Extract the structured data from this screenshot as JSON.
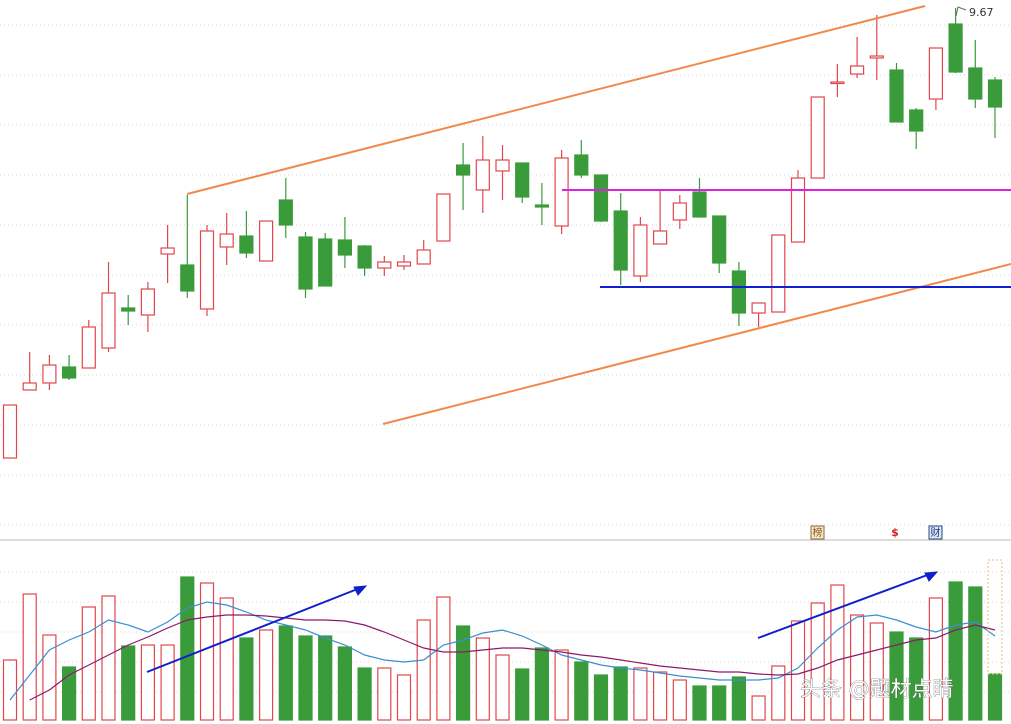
{
  "chart_data": {
    "type": "candlestick",
    "open": [
      5.17,
      5.85,
      5.92,
      6.08,
      6.07,
      6.27,
      6.67,
      6.6,
      7.21,
      7.1,
      6.66,
      7.28,
      7.39,
      7.14,
      7.75,
      7.38,
      7.36,
      7.35,
      7.29,
      7.07,
      7.09,
      7.11,
      7.34,
      8.1,
      7.85,
      8.04,
      8.12,
      7.7,
      7.49,
      8.2,
      8.0,
      7.64,
      6.99,
      7.31,
      7.55,
      7.83,
      7.59,
      7.04,
      6.62,
      6.63,
      7.33,
      7.97,
      8.92,
      9.01,
      9.17,
      9.05,
      8.65,
      8.76,
      9.51,
      9.07,
      8.95
    ],
    "high": [
      5.7,
      6.23,
      6.2,
      6.2,
      6.55,
      7.13,
      6.8,
      6.93,
      7.5,
      7.8,
      7.5,
      7.62,
      7.64,
      7.54,
      7.97,
      7.43,
      7.42,
      7.58,
      7.3,
      7.19,
      7.2,
      7.35,
      7.81,
      8.32,
      8.39,
      8.3,
      8.12,
      7.92,
      8.25,
      8.35,
      8.0,
      7.82,
      7.58,
      7.85,
      7.8,
      7.97,
      7.59,
      7.13,
      6.72,
      7.4,
      8.05,
      8.78,
      9.11,
      9.38,
      9.6,
      9.12,
      8.67,
      9.27,
      9.67,
      9.35,
      8.98
    ],
    "low": [
      5.17,
      5.85,
      5.85,
      5.95,
      6.07,
      6.23,
      6.5,
      6.43,
      6.92,
      6.77,
      6.59,
      7.1,
      7.17,
      7.14,
      7.37,
      6.77,
      6.89,
      7.07,
      6.99,
      6.99,
      7.05,
      7.11,
      7.34,
      7.65,
      7.62,
      7.75,
      7.72,
      7.5,
      7.41,
      7.97,
      7.53,
      6.9,
      6.93,
      7.31,
      7.46,
      7.58,
      7.02,
      6.49,
      6.48,
      6.63,
      7.33,
      7.97,
      8.78,
      8.97,
      8.95,
      8.53,
      8.26,
      8.65,
      9.02,
      8.67,
      8.37
    ],
    "close": [
      5.7,
      5.92,
      6.1,
      5.97,
      6.48,
      6.82,
      6.64,
      6.86,
      7.27,
      6.84,
      7.44,
      7.41,
      7.22,
      7.54,
      7.5,
      6.86,
      6.89,
      7.2,
      7.07,
      7.13,
      7.13,
      7.25,
      7.81,
      8.0,
      8.15,
      8.15,
      7.78,
      7.68,
      8.17,
      8.0,
      7.54,
      7.05,
      7.5,
      7.44,
      7.72,
      7.58,
      7.12,
      6.62,
      6.72,
      7.4,
      7.97,
      8.78,
      8.93,
      9.09,
      9.19,
      8.53,
      8.44,
      9.27,
      9.03,
      8.76,
      8.68
    ],
    "ylim": [
      4.48,
      9.75
    ],
    "up_color": "#e0474c",
    "down_color": "#3a9b3a",
    "volume": {
      "values": [
        60,
        126,
        85,
        53,
        113,
        124,
        74,
        75,
        75,
        143,
        137,
        122,
        82,
        90,
        94,
        84,
        84,
        73,
        52,
        52,
        45,
        100,
        123,
        94,
        82,
        65,
        51,
        72,
        70,
        58,
        45,
        53,
        52,
        48,
        40,
        34,
        34,
        43,
        24,
        54,
        99,
        117,
        135,
        105,
        97,
        88,
        82,
        122,
        138,
        133,
        46
      ],
      "ylim": [
        0,
        180
      ],
      "series": [
        {
          "color": "#3a8fd0",
          "values": [
            20,
            45,
            70,
            80,
            88,
            100,
            95,
            88,
            98,
            112,
            118,
            115,
            108,
            100,
            95,
            90,
            82,
            75,
            65,
            60,
            58,
            60,
            75,
            80,
            87,
            90,
            84,
            75,
            65,
            60,
            55,
            52,
            50,
            47,
            44,
            42,
            40,
            40,
            40,
            42,
            52,
            72,
            90,
            103,
            105,
            100,
            93,
            88,
            95,
            98,
            84
          ]
        },
        {
          "color": "#8b1a6b",
          "values": [
            null,
            20,
            30,
            45,
            55,
            65,
            75,
            83,
            92,
            100,
            103,
            105,
            105,
            104,
            102,
            100,
            100,
            99,
            95,
            88,
            80,
            72,
            68,
            68,
            70,
            72,
            72,
            70,
            68,
            65,
            63,
            60,
            57,
            54,
            52,
            50,
            48,
            48,
            46,
            45,
            46,
            52,
            60,
            65,
            70,
            75,
            80,
            82,
            90,
            95,
            90
          ]
        }
      ]
    }
  },
  "icons": [
    "榜",
    "$",
    "财"
  ],
  "watermark": "头条 @题材点睛"
}
